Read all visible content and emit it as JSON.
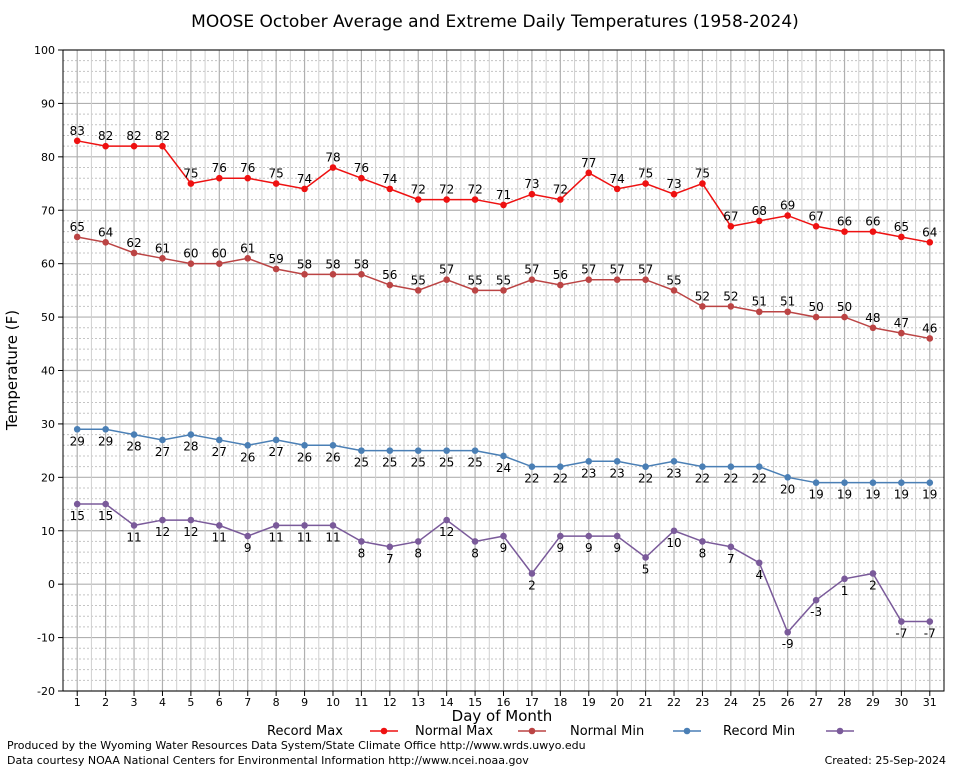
{
  "chart_data": {
    "type": "line",
    "title": "MOOSE October Average and Extreme Daily Temperatures (1958-2024)",
    "xlabel": "Day of Month",
    "ylabel": "Temperature (F)",
    "x": [
      1,
      2,
      3,
      4,
      5,
      6,
      7,
      8,
      9,
      10,
      11,
      12,
      13,
      14,
      15,
      16,
      17,
      18,
      19,
      20,
      21,
      22,
      23,
      24,
      25,
      26,
      27,
      28,
      29,
      30,
      31
    ],
    "xlim": [
      0.5,
      31.5
    ],
    "ylim": [
      -20,
      100
    ],
    "yticks": [
      -20,
      -10,
      0,
      10,
      20,
      30,
      40,
      50,
      60,
      70,
      80,
      90,
      100
    ],
    "grid": true,
    "legend_position": "bottom",
    "series": [
      {
        "name": "Record Max",
        "color": "#ee1111",
        "label_position": "above",
        "values": [
          83,
          82,
          82,
          82,
          75,
          76,
          76,
          75,
          74,
          78,
          76,
          74,
          72,
          72,
          72,
          71,
          73,
          72,
          77,
          74,
          75,
          73,
          75,
          67,
          68,
          69,
          67,
          66,
          66,
          65,
          64
        ]
      },
      {
        "name": "Normal Max",
        "color": "#bb4444",
        "label_position": "above",
        "values": [
          65,
          64,
          62,
          61,
          60,
          60,
          61,
          59,
          58,
          58,
          58,
          56,
          55,
          57,
          55,
          55,
          57,
          56,
          57,
          57,
          57,
          55,
          52,
          52,
          51,
          51,
          50,
          50,
          48,
          47,
          46
        ]
      },
      {
        "name": "Normal Min",
        "color": "#4a7fb5",
        "label_position": "below",
        "values": [
          29,
          29,
          28,
          27,
          28,
          27,
          26,
          27,
          26,
          26,
          25,
          25,
          25,
          25,
          25,
          24,
          22,
          22,
          23,
          23,
          22,
          23,
          22,
          22,
          22,
          20,
          19,
          19,
          19,
          19,
          19
        ]
      },
      {
        "name": "Record Min",
        "color": "#7a5a9a",
        "label_position": "below",
        "values": [
          15,
          15,
          11,
          12,
          12,
          11,
          9,
          11,
          11,
          11,
          8,
          7,
          8,
          12,
          8,
          9,
          2,
          9,
          9,
          9,
          5,
          10,
          8,
          7,
          4,
          -9,
          -3,
          1,
          2,
          -7,
          -7
        ]
      }
    ]
  },
  "footer": {
    "produced_by": "Produced by the Wyoming Water Resources Data System/State Climate Office http://www.wrds.uwyo.edu",
    "data_courtesy": "Data courtesy NOAA National Centers for Environmental Information http://www.ncei.noaa.gov",
    "created": "Created:  25-Sep-2024"
  }
}
